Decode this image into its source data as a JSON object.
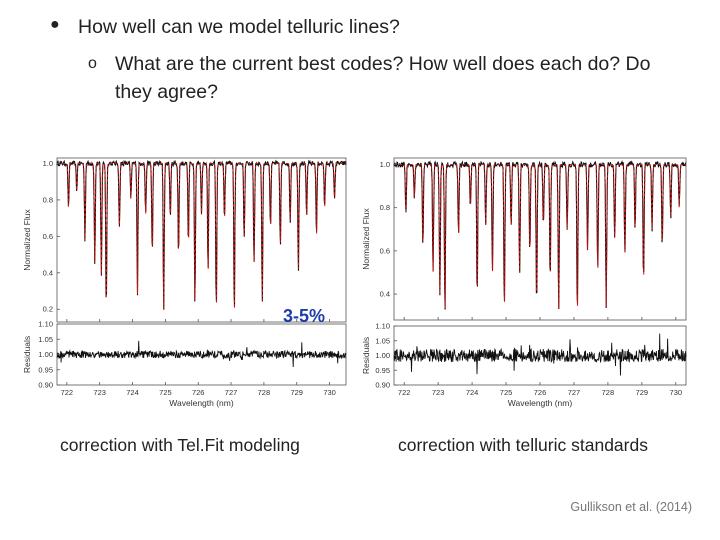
{
  "bullets": {
    "item1": "How well can we model telluric lines?",
    "item1_marker": "●",
    "item2": "What are the current best codes? How well does each do? Do they agree?",
    "item2_marker": "o"
  },
  "annotation": "3-5%",
  "captions": {
    "left": "correction with Tel.Fit modeling",
    "right": "correction with telluric standards"
  },
  "citation": "Gullikson et al. (2014)",
  "chart_data": [
    {
      "type": "line",
      "xlabel": "Wavelength (nm)",
      "ylabel": "Normalized Flux",
      "xlim": [
        721.7,
        730.5
      ],
      "ylim": [
        0.13,
        1.03
      ],
      "xticks": [
        "722",
        "723",
        "724",
        "725",
        "726",
        "727",
        "728",
        "729",
        "730"
      ],
      "yticks": [
        "0.2",
        "0.4",
        "0.6",
        "0.8",
        "1.0"
      ],
      "residual_ylabel": "Residuals",
      "residual_ylim": [
        0.9,
        1.1
      ],
      "residual_yticks": [
        "0.90",
        "0.95",
        "1.00",
        "1.05",
        "1.10"
      ],
      "colors": {
        "observed": "#111111",
        "model": "#cc1111"
      },
      "absorption_lines": [
        {
          "x": 722.05,
          "depth": 0.25
        },
        {
          "x": 722.3,
          "depth": 0.15
        },
        {
          "x": 722.55,
          "depth": 0.42
        },
        {
          "x": 722.85,
          "depth": 0.55
        },
        {
          "x": 723.05,
          "depth": 0.62
        },
        {
          "x": 723.2,
          "depth": 0.82
        },
        {
          "x": 723.6,
          "depth": 0.35
        },
        {
          "x": 723.95,
          "depth": 0.2
        },
        {
          "x": 724.15,
          "depth": 0.72
        },
        {
          "x": 724.4,
          "depth": 0.28
        },
        {
          "x": 724.6,
          "depth": 0.5
        },
        {
          "x": 724.95,
          "depth": 0.82
        },
        {
          "x": 725.15,
          "depth": 0.3
        },
        {
          "x": 725.4,
          "depth": 0.52
        },
        {
          "x": 725.7,
          "depth": 0.45
        },
        {
          "x": 725.9,
          "depth": 0.78
        },
        {
          "x": 726.1,
          "depth": 0.28
        },
        {
          "x": 726.3,
          "depth": 0.6
        },
        {
          "x": 726.55,
          "depth": 0.82
        },
        {
          "x": 726.8,
          "depth": 0.32
        },
        {
          "x": 727.1,
          "depth": 0.85
        },
        {
          "x": 727.4,
          "depth": 0.42
        },
        {
          "x": 727.7,
          "depth": 0.55
        },
        {
          "x": 727.95,
          "depth": 0.78
        },
        {
          "x": 728.2,
          "depth": 0.35
        },
        {
          "x": 728.5,
          "depth": 0.45
        },
        {
          "x": 728.8,
          "depth": 0.32
        },
        {
          "x": 729.05,
          "depth": 0.6
        },
        {
          "x": 729.3,
          "depth": 0.3
        },
        {
          "x": 729.6,
          "depth": 0.4
        },
        {
          "x": 729.85,
          "depth": 0.25
        },
        {
          "x": 730.15,
          "depth": 0.2
        }
      ],
      "residual_noise": 0.012
    },
    {
      "type": "line",
      "xlabel": "Wavelength (nm)",
      "ylabel": "Normalized Flux",
      "xlim": [
        721.7,
        730.3
      ],
      "ylim": [
        0.28,
        1.03
      ],
      "xticks": [
        "722",
        "723",
        "724",
        "725",
        "726",
        "727",
        "728",
        "729",
        "730"
      ],
      "yticks": [
        "0.4",
        "0.6",
        "0.8",
        "1.0"
      ],
      "residual_ylabel": "Residuals",
      "residual_ylim": [
        0.9,
        1.1
      ],
      "residual_yticks": [
        "0.90",
        "0.95",
        "1.00",
        "1.05",
        "1.10"
      ],
      "colors": {
        "observed": "#111111",
        "model": "#cc1111"
      },
      "absorption_lines": [
        {
          "x": 722.05,
          "depth": 0.22
        },
        {
          "x": 722.3,
          "depth": 0.15
        },
        {
          "x": 722.55,
          "depth": 0.38
        },
        {
          "x": 722.85,
          "depth": 0.5
        },
        {
          "x": 723.05,
          "depth": 0.6
        },
        {
          "x": 723.2,
          "depth": 0.7
        },
        {
          "x": 723.6,
          "depth": 0.33
        },
        {
          "x": 723.95,
          "depth": 0.2
        },
        {
          "x": 724.15,
          "depth": 0.62
        },
        {
          "x": 724.4,
          "depth": 0.28
        },
        {
          "x": 724.6,
          "depth": 0.5
        },
        {
          "x": 724.95,
          "depth": 0.68
        },
        {
          "x": 725.15,
          "depth": 0.3
        },
        {
          "x": 725.4,
          "depth": 0.5
        },
        {
          "x": 725.7,
          "depth": 0.42
        },
        {
          "x": 725.9,
          "depth": 0.66
        },
        {
          "x": 726.1,
          "depth": 0.28
        },
        {
          "x": 726.3,
          "depth": 0.55
        },
        {
          "x": 726.55,
          "depth": 0.68
        },
        {
          "x": 726.8,
          "depth": 0.3
        },
        {
          "x": 727.1,
          "depth": 0.7
        },
        {
          "x": 727.4,
          "depth": 0.4
        },
        {
          "x": 727.7,
          "depth": 0.5
        },
        {
          "x": 727.95,
          "depth": 0.66
        },
        {
          "x": 728.2,
          "depth": 0.35
        },
        {
          "x": 728.5,
          "depth": 0.42
        },
        {
          "x": 728.8,
          "depth": 0.3
        },
        {
          "x": 729.05,
          "depth": 0.55
        },
        {
          "x": 729.3,
          "depth": 0.3
        },
        {
          "x": 729.6,
          "depth": 0.38
        },
        {
          "x": 729.85,
          "depth": 0.25
        },
        {
          "x": 730.1,
          "depth": 0.2
        }
      ],
      "residual_noise": 0.022
    }
  ]
}
